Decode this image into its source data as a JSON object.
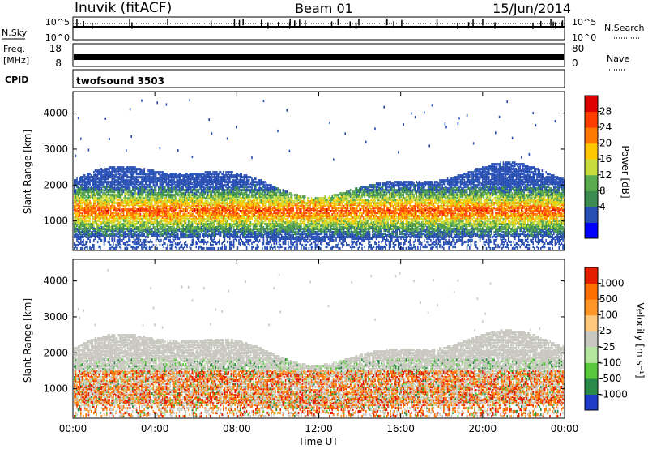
{
  "header": {
    "station": "Inuvik (fitACF)",
    "beam": "Beam 01",
    "date": "15/Jun/2014"
  },
  "status_panels": {
    "nsky_label": "N.Sky",
    "nsky_ticks": [
      "10^5",
      "10^0"
    ],
    "nsearch_label": "N.Search",
    "nsearch_ticks": [
      "10^5",
      "10^0"
    ],
    "freq_label": "Freq.",
    "freq_unit": "[MHz]",
    "freq_ticks": [
      "18",
      "8"
    ],
    "nave_label": "Nave",
    "nave_ticks": [
      "80",
      "0"
    ],
    "cpid_label": "CPID",
    "cpid_value": "twofsound 3503"
  },
  "chart_data": [
    {
      "type": "heatmap",
      "name": "power",
      "ylabel": "Slant Range [km]",
      "ylim": [
        180,
        4600
      ],
      "y_ticks": [
        1000,
        2000,
        3000,
        4000
      ],
      "x_ticks": [
        "00:00",
        "04:00",
        "08:00",
        "12:00",
        "16:00",
        "20:00",
        "00:00"
      ],
      "colorbar_label": "Power [dB]",
      "colorbar_ticks": [
        "28",
        "24",
        "20",
        "16",
        "12",
        "8",
        "4"
      ],
      "colors": [
        "#0000ff",
        "#2850b4",
        "#3c8c50",
        "#5aaa50",
        "#c8dc3c",
        "#ffc800",
        "#ff7800",
        "#ff3c00",
        "#dc0000"
      ]
    },
    {
      "type": "heatmap",
      "name": "velocity",
      "ylabel": "Slant Range [km]",
      "ylim": [
        180,
        4600
      ],
      "y_ticks": [
        1000,
        2000,
        3000,
        4000
      ],
      "x_ticks": [
        "00:00",
        "04:00",
        "08:00",
        "12:00",
        "16:00",
        "20:00",
        "00:00"
      ],
      "xlabel": "Time UT",
      "colorbar_label": "Velocity [m s⁻¹]",
      "colorbar_ticks": [
        "1000",
        "500",
        "100",
        "25",
        "-25",
        "-100",
        "-500",
        "-1000"
      ],
      "colors": [
        "#1e3cc8",
        "#2a8a4a",
        "#5ac83c",
        "#b4e6a0",
        "#c8c8c0",
        "#ffc87c",
        "#ff9628",
        "#ff6e00",
        "#e61e00"
      ]
    }
  ]
}
